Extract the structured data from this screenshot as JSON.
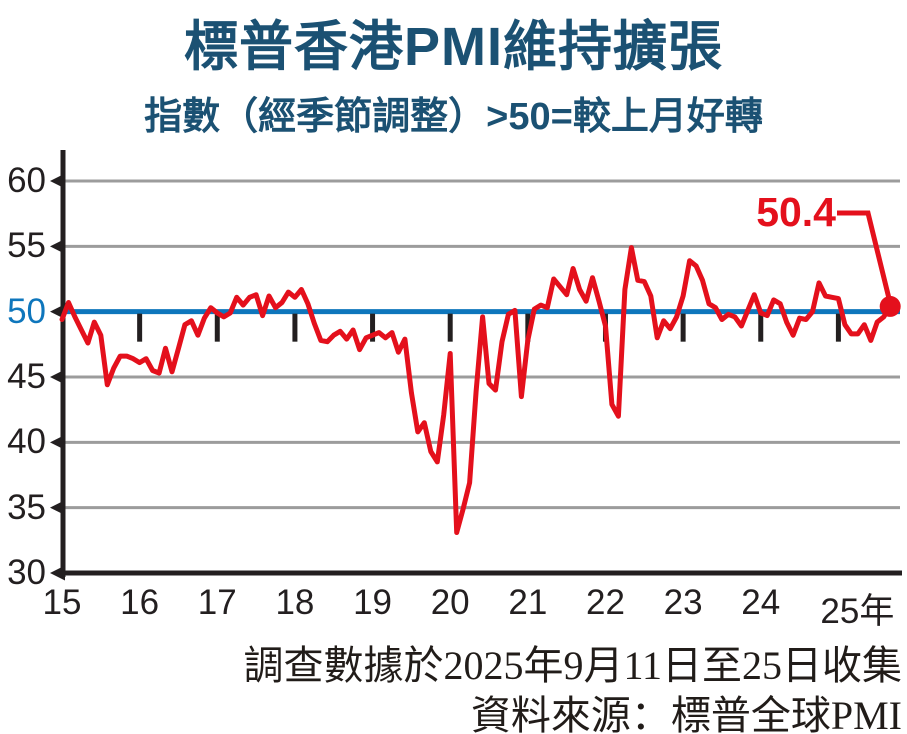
{
  "header": {
    "title": "標普香港PMI維持擴張",
    "subtitle": "指數（經季節調整）>50=較上月好轉"
  },
  "annotation": {
    "latest_label": "50.4"
  },
  "footer": {
    "line1": "調查數據於2025年9月11日至25日收集",
    "line2": "資料來源：標普全球PMI"
  },
  "chart_data": {
    "type": "line",
    "title": "標普香港PMI維持擴張",
    "subtitle": "指數（經季節調整）>50=較上月好轉",
    "x_start": "2015-01",
    "x_end": "2025-09",
    "x_tick_labels": [
      "15",
      "16",
      "17",
      "18",
      "19",
      "20",
      "21",
      "22",
      "23",
      "24",
      "25年"
    ],
    "y_ticks": [
      60,
      55,
      50,
      45,
      40,
      35,
      30
    ],
    "ylim": [
      30,
      60
    ],
    "grid": true,
    "reference_line": {
      "value": 50,
      "meaning": ">50=較上月好轉",
      "color": "#0e76bc"
    },
    "latest_value": 50.4,
    "latest_point_marker": "red-dot",
    "series": [
      {
        "name": "標普香港PMI（經季節調整）",
        "color": "#e4101c",
        "frequency": "monthly",
        "values": [
          49.4,
          50.7,
          49.6,
          48.6,
          47.6,
          49.2,
          48.2,
          44.4,
          45.7,
          46.6,
          46.6,
          46.4,
          46.1,
          46.4,
          45.5,
          45.3,
          47.2,
          45.4,
          47.2,
          49.0,
          49.3,
          48.2,
          49.5,
          50.3,
          49.9,
          49.6,
          49.9,
          51.1,
          50.5,
          51.1,
          51.3,
          49.7,
          51.2,
          50.3,
          50.7,
          51.5,
          51.1,
          51.7,
          50.6,
          49.1,
          47.8,
          47.7,
          48.2,
          48.5,
          47.9,
          48.6,
          47.1,
          48.0,
          48.2,
          48.4,
          48.0,
          48.4,
          46.9,
          47.9,
          43.8,
          40.8,
          41.5,
          39.3,
          38.5,
          42.1,
          46.8,
          33.1,
          34.9,
          36.9,
          43.9,
          49.6,
          44.5,
          44.0,
          47.7,
          49.8,
          50.1,
          43.5,
          47.8,
          50.2,
          50.5,
          50.3,
          52.5,
          51.9,
          51.3,
          53.3,
          51.7,
          50.8,
          52.6,
          50.8,
          48.9,
          42.9,
          42.0,
          51.7,
          54.9,
          52.4,
          52.3,
          51.2,
          48.0,
          49.3,
          48.7,
          49.6,
          51.2,
          53.9,
          53.5,
          52.4,
          50.6,
          50.3,
          49.4,
          49.8,
          49.6,
          48.9,
          50.1,
          51.3,
          49.9,
          49.7,
          50.9,
          50.6,
          49.2,
          48.2,
          49.5,
          49.4,
          50.0,
          52.2,
          51.2,
          51.1,
          51.0,
          49.0,
          48.3,
          48.3,
          49.0,
          47.8,
          49.2,
          49.6,
          50.4
        ]
      }
    ],
    "colors": {
      "series_red": "#e4101c",
      "reference_blue": "#0e76bc",
      "title_navy": "#1b5173",
      "gridline_gray": "#9c9c9c",
      "axis_ink": "#231f20"
    }
  }
}
